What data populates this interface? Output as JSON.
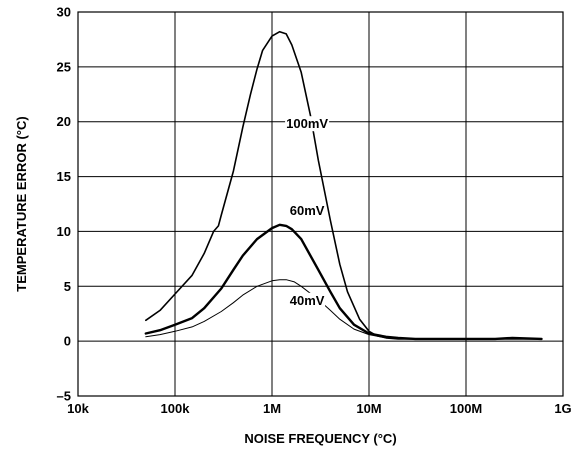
{
  "chart_data": {
    "type": "line",
    "xlabel": "NOISE FREQUENCY (°C)",
    "ylabel": "TEMPERATURE ERROR (°C)",
    "x_scale": "log",
    "xlim": [
      10000,
      1000000000
    ],
    "ylim": [
      -5,
      30
    ],
    "x_ticks": [
      {
        "value": 10000,
        "label": "10k"
      },
      {
        "value": 100000,
        "label": "100k"
      },
      {
        "value": 1000000,
        "label": "1M"
      },
      {
        "value": 10000000,
        "label": "10M"
      },
      {
        "value": 100000000,
        "label": "100M"
      },
      {
        "value": 1000000000,
        "label": "1G"
      }
    ],
    "y_ticks": [
      {
        "value": -5,
        "label": "–5"
      },
      {
        "value": 0,
        "label": "0"
      },
      {
        "value": 5,
        "label": "5"
      },
      {
        "value": 10,
        "label": "10"
      },
      {
        "value": 15,
        "label": "15"
      },
      {
        "value": 20,
        "label": "20"
      },
      {
        "value": 25,
        "label": "25"
      },
      {
        "value": 30,
        "label": "30"
      }
    ],
    "grid": true,
    "legend": "none",
    "series": [
      {
        "name": "100mV",
        "stroke_width": 1.6,
        "x": [
          50000,
          70000,
          100000,
          150000,
          200000,
          250000,
          280000,
          300000,
          400000,
          500000,
          600000,
          700000,
          800000,
          1000000,
          1200000,
          1400000,
          1600000,
          2000000,
          2500000,
          3000000,
          4000000,
          5000000,
          6000000,
          8000000,
          10000000,
          12000000,
          15000000,
          20000000,
          30000000,
          50000000,
          100000000,
          200000000,
          300000000,
          600000000
        ],
        "values": [
          1.9,
          2.8,
          4.3,
          6.0,
          8.0,
          10.0,
          10.5,
          11.5,
          15.5,
          19.5,
          22.5,
          24.8,
          26.5,
          27.8,
          28.2,
          28.0,
          27.0,
          24.5,
          20.5,
          16.5,
          11.0,
          7.0,
          4.5,
          2.0,
          0.9,
          0.5,
          0.3,
          0.2,
          0.2,
          0.2,
          0.2,
          0.2,
          0.2,
          0.2
        ]
      },
      {
        "name": "60mV",
        "stroke_width": 2.4,
        "x": [
          50000,
          70000,
          100000,
          150000,
          200000,
          300000,
          400000,
          500000,
          700000,
          1000000,
          1200000,
          1400000,
          1600000,
          2000000,
          3000000,
          4000000,
          5000000,
          7000000,
          10000000,
          15000000,
          20000000,
          30000000,
          50000000,
          100000000,
          200000000,
          300000000,
          600000000
        ],
        "values": [
          0.7,
          1.0,
          1.5,
          2.1,
          3.0,
          4.8,
          6.5,
          7.8,
          9.3,
          10.3,
          10.6,
          10.5,
          10.2,
          9.3,
          6.5,
          4.5,
          3.0,
          1.5,
          0.7,
          0.4,
          0.3,
          0.2,
          0.2,
          0.2,
          0.2,
          0.3,
          0.2
        ]
      },
      {
        "name": "40mV",
        "stroke_width": 1.0,
        "x": [
          50000,
          70000,
          100000,
          150000,
          200000,
          300000,
          400000,
          500000,
          700000,
          1000000,
          1200000,
          1400000,
          1700000,
          2000000,
          3000000,
          4000000,
          5000000,
          7000000,
          10000000,
          15000000,
          20000000,
          30000000,
          50000000,
          100000000,
          200000000,
          600000000
        ],
        "values": [
          0.4,
          0.6,
          0.9,
          1.3,
          1.8,
          2.7,
          3.5,
          4.2,
          5.0,
          5.5,
          5.6,
          5.6,
          5.4,
          5.0,
          3.8,
          2.8,
          2.0,
          1.1,
          0.6,
          0.3,
          0.2,
          0.2,
          0.2,
          0.2,
          0.2,
          0.2
        ]
      }
    ],
    "annotations": [
      {
        "series": "100mV",
        "text": "100mV",
        "x": 2300000,
        "y": 19.5
      },
      {
        "series": "60mV",
        "text": "60mV",
        "x": 2300000,
        "y": 11.6
      },
      {
        "series": "40mV",
        "text": "40mV",
        "x": 2300000,
        "y": 3.4
      }
    ]
  }
}
